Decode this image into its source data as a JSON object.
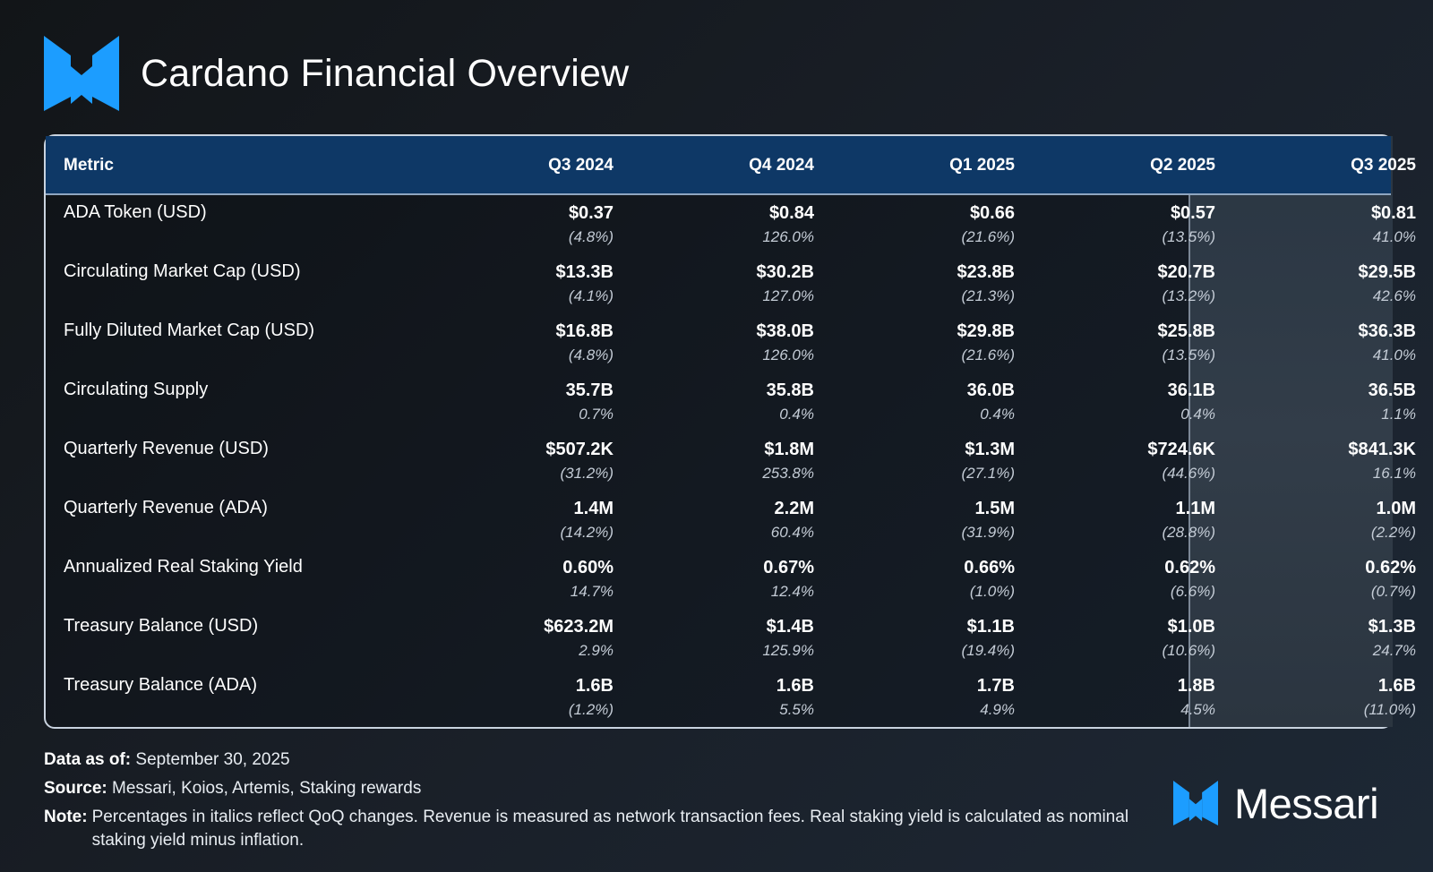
{
  "header": {
    "title": "Cardano Financial Overview",
    "logo_icon": "messari-m-logo-icon"
  },
  "colors": {
    "accent_blue": "#1c9dff",
    "header_row": "#0e3866",
    "highlight_col": "#2f3a46"
  },
  "chart_data": {
    "type": "table",
    "title": "Cardano Financial Overview",
    "columns": [
      "Metric",
      "Q3 2024",
      "Q4 2024",
      "Q1 2025",
      "Q2 2025",
      "Q3 2025"
    ],
    "highlighted_column": "Q3 2025",
    "rows": [
      {
        "metric": "ADA Token (USD)",
        "values": [
          "$0.37",
          "$0.84",
          "$0.66",
          "$0.57",
          "$0.81"
        ],
        "changes": [
          "(4.8%)",
          "126.0%",
          "(21.6%)",
          "(13.5%)",
          "41.0%"
        ]
      },
      {
        "metric": "Circulating Market Cap (USD)",
        "values": [
          "$13.3B",
          "$30.2B",
          "$23.8B",
          "$20.7B",
          "$29.5B"
        ],
        "changes": [
          "(4.1%)",
          "127.0%",
          "(21.3%)",
          "(13.2%)",
          "42.6%"
        ]
      },
      {
        "metric": "Fully Diluted Market Cap (USD)",
        "values": [
          "$16.8B",
          "$38.0B",
          "$29.8B",
          "$25.8B",
          "$36.3B"
        ],
        "changes": [
          "(4.8%)",
          "126.0%",
          "(21.6%)",
          "(13.5%)",
          "41.0%"
        ]
      },
      {
        "metric": "Circulating Supply",
        "values": [
          "35.7B",
          "35.8B",
          "36.0B",
          "36.1B",
          "36.5B"
        ],
        "changes": [
          "0.7%",
          "0.4%",
          "0.4%",
          "0.4%",
          "1.1%"
        ]
      },
      {
        "metric": "Quarterly Revenue (USD)",
        "values": [
          "$507.2K",
          "$1.8M",
          "$1.3M",
          "$724.6K",
          "$841.3K"
        ],
        "changes": [
          "(31.2%)",
          "253.8%",
          "(27.1%)",
          "(44.6%)",
          "16.1%"
        ]
      },
      {
        "metric": "Quarterly Revenue (ADA)",
        "values": [
          "1.4M",
          "2.2M",
          "1.5M",
          "1.1M",
          "1.0M"
        ],
        "changes": [
          "(14.2%)",
          "60.4%",
          "(31.9%)",
          "(28.8%)",
          "(2.2%)"
        ]
      },
      {
        "metric": "Annualized Real Staking Yield",
        "values": [
          "0.60%",
          "0.67%",
          "0.66%",
          "0.62%",
          "0.62%"
        ],
        "changes": [
          "14.7%",
          "12.4%",
          "(1.0%)",
          "(6.6%)",
          "(0.7%)"
        ]
      },
      {
        "metric": "Treasury Balance (USD)",
        "values": [
          "$623.2M",
          "$1.4B",
          "$1.1B",
          "$1.0B",
          "$1.3B"
        ],
        "changes": [
          "2.9%",
          "125.9%",
          "(19.4%)",
          "(10.6%)",
          "24.7%"
        ]
      },
      {
        "metric": "Treasury Balance (ADA)",
        "values": [
          "1.6B",
          "1.6B",
          "1.7B",
          "1.8B",
          "1.6B"
        ],
        "changes": [
          "(1.2%)",
          "5.5%",
          "4.9%",
          "4.5%",
          "(11.0%)"
        ]
      }
    ]
  },
  "footer": {
    "data_as_of_label": "Data as of:",
    "data_as_of_value": "September 30, 2025",
    "source_label": "Source:",
    "source_value": "Messari, Koios, Artemis, Staking rewards",
    "note_label": "Note:",
    "note_value": "Percentages in italics reflect QoQ changes. Revenue is measured as network transaction fees. Real staking yield is calculated as nominal staking yield minus inflation."
  },
  "brand": {
    "name": "Messari",
    "icon": "messari-m-logo-icon"
  }
}
